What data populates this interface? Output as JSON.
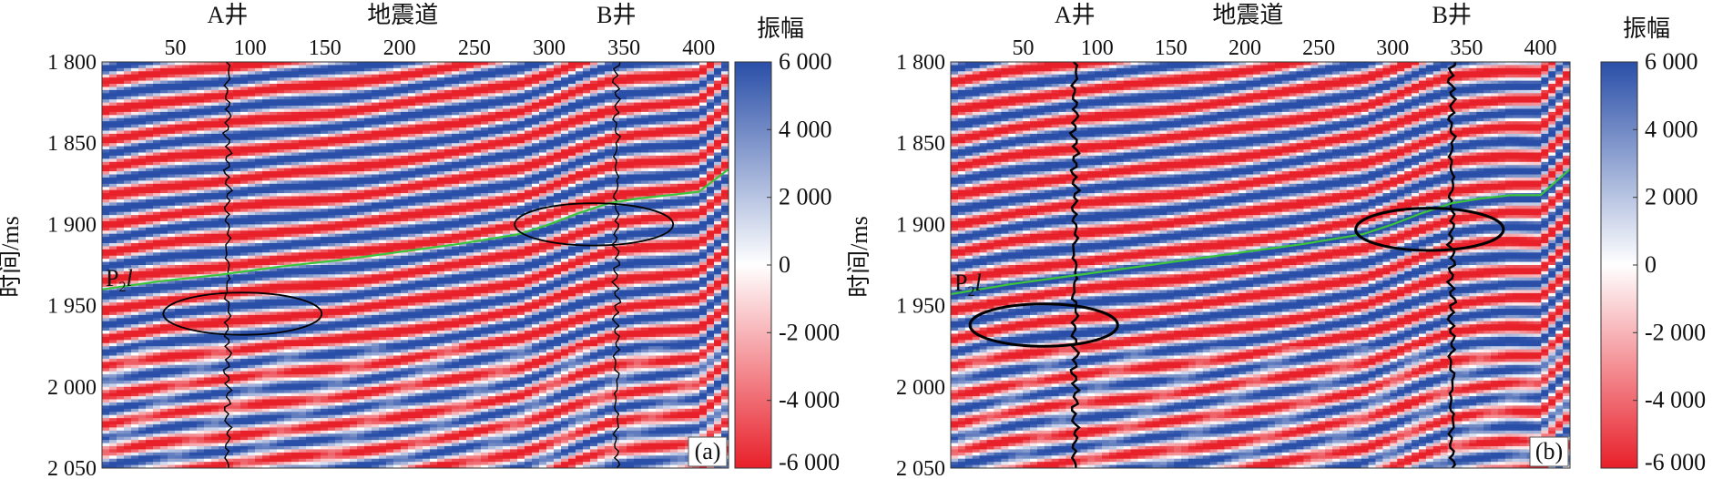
{
  "chart_data": [
    {
      "type": "heatmap",
      "panel_label": "(a)",
      "xlabel": "地震道",
      "ylabel": "时间/ms",
      "xlim": [
        1,
        420
      ],
      "ylim": [
        1800,
        2050
      ],
      "xticks": [
        50,
        100,
        150,
        200,
        250,
        300,
        350,
        400
      ],
      "yticks": [
        1800,
        1850,
        1900,
        1950,
        2000,
        2050
      ],
      "ytick_labels": [
        "1 800",
        "1 850",
        "1 900",
        "1 950",
        "2 000",
        "2 050"
      ],
      "colorbar": {
        "title": "振幅",
        "range": [
          -6000,
          6000
        ],
        "ticks": [
          6000,
          4000,
          2000,
          0,
          -2000,
          -4000,
          -6000
        ],
        "tick_labels": [
          "6 000",
          "4 000",
          "2 000",
          "0",
          "-2 000",
          "-4 000",
          "-6 000"
        ],
        "colors": {
          "low": "#e8202a",
          "mid": "#ffffff",
          "high": "#2a4fa8"
        }
      },
      "wells": [
        {
          "name": "A井",
          "trace": 85,
          "log_color": "#000000"
        },
        {
          "name": "B井",
          "trace": 345,
          "log_color": "#000000"
        }
      ],
      "horizon": {
        "name": "P",
        "subscript": "2",
        "suffix": "l",
        "color": "#3cc43c",
        "x": [
          1,
          40,
          80,
          120,
          160,
          200,
          240,
          280,
          300,
          320,
          340,
          360,
          380,
          400,
          420
        ],
        "y": [
          1940,
          1935,
          1931,
          1926,
          1922,
          1917,
          1912,
          1906,
          1900,
          1893,
          1887,
          1884,
          1882,
          1880,
          1866
        ]
      },
      "ellipses": [
        {
          "center": [
            95,
            1955
          ],
          "half_width_traces": 53,
          "half_height_ms": 13
        },
        {
          "center": [
            330,
            1900
          ],
          "half_width_traces": 53,
          "half_height_ms": 13
        }
      ]
    },
    {
      "type": "heatmap",
      "panel_label": "(b)",
      "xlabel": "地震道",
      "ylabel": "时间/ms",
      "xlim": [
        1,
        420
      ],
      "ylim": [
        1800,
        2050
      ],
      "xticks": [
        50,
        100,
        150,
        200,
        250,
        300,
        350,
        400
      ],
      "yticks": [
        1800,
        1850,
        1900,
        1950,
        2000,
        2050
      ],
      "ytick_labels": [
        "1 800",
        "1 850",
        "1 900",
        "1 950",
        "2 000",
        "2 050"
      ],
      "colorbar": {
        "title": "振幅",
        "range": [
          -6000,
          6000
        ],
        "ticks": [
          6000,
          4000,
          2000,
          0,
          -2000,
          -4000,
          -6000
        ],
        "tick_labels": [
          "6 000",
          "4 000",
          "2 000",
          "0",
          "-2 000",
          "-4 000",
          "-6 000"
        ],
        "colors": {
          "low": "#e8202a",
          "mid": "#ffffff",
          "high": "#2a4fa8"
        }
      },
      "wells": [
        {
          "name": "A井",
          "trace": 85,
          "log_color": "#000000"
        },
        {
          "name": "B井",
          "trace": 340,
          "log_color": "#000000"
        }
      ],
      "horizon": {
        "name": "P",
        "subscript": "2",
        "suffix": "l",
        "color": "#3cc43c",
        "x": [
          1,
          40,
          80,
          120,
          160,
          200,
          240,
          280,
          300,
          320,
          340,
          360,
          380,
          400,
          420
        ],
        "y": [
          1943,
          1937,
          1932,
          1927,
          1922,
          1917,
          1912,
          1906,
          1900,
          1893,
          1887,
          1884,
          1882,
          1882,
          1866
        ]
      },
      "ellipses": [
        {
          "center": [
            64,
            1962
          ],
          "half_width_traces": 50,
          "half_height_ms": 13
        },
        {
          "center": [
            325,
            1903
          ],
          "half_width_traces": 50,
          "half_height_ms": 13
        }
      ]
    }
  ]
}
